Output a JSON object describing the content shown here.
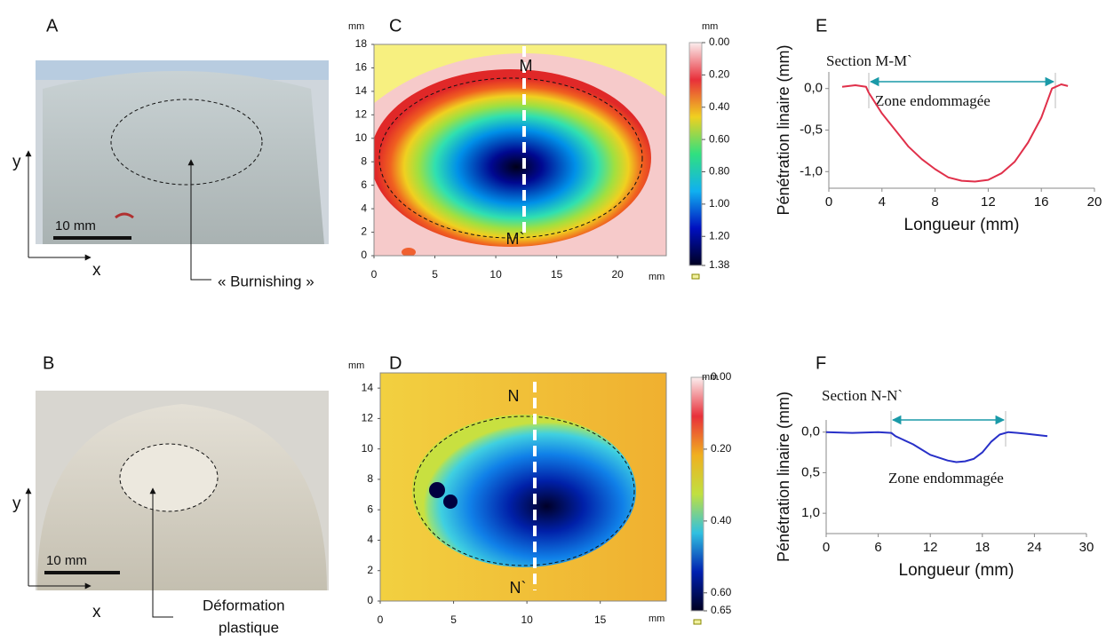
{
  "panels": {
    "A": {
      "label": "A",
      "scale": "10 mm",
      "axis_x": "x",
      "axis_y": "y",
      "annotation": "« Burnishing »"
    },
    "B": {
      "label": "B",
      "scale": "10 mm",
      "axis_x": "x",
      "axis_y": "y",
      "annotation": [
        "Déformation",
        "plastique"
      ]
    }
  },
  "chart_data": [
    {
      "type": "heatmap",
      "label": "C",
      "unit_x": "mm",
      "unit_y": "mm",
      "xlim": [
        0,
        24
      ],
      "xticks": [
        0,
        5,
        10,
        15,
        20
      ],
      "ylim": [
        0,
        18
      ],
      "yticks": [
        0,
        2,
        4,
        6,
        8,
        10,
        12,
        14,
        16,
        18
      ],
      "section_start": "M",
      "section_end": "M`",
      "colorbar": {
        "unit": "mm",
        "lim": [
          0,
          1.38
        ],
        "colors": [
          "#fbeeee",
          "#e8303a",
          "#f0d020",
          "#30e080",
          "#10b0f0",
          "#0010c0",
          "#000020"
        ],
        "ticks": [
          {
            "value": 0,
            "label": "0.00"
          },
          {
            "value": 0.2,
            "label": "0.20"
          },
          {
            "value": 0.4,
            "label": "0.40"
          },
          {
            "value": 0.6,
            "label": "0.60"
          },
          {
            "value": 0.8,
            "label": "0.80"
          },
          {
            "value": 1.0,
            "label": "1.00"
          },
          {
            "value": 1.2,
            "label": "1.20"
          },
          {
            "value": 1.38,
            "label": "1.38"
          }
        ]
      }
    },
    {
      "type": "heatmap",
      "label": "D",
      "unit_x": "mm",
      "unit_y": "mm",
      "xlim": [
        0,
        19.5
      ],
      "xticks": [
        0,
        5,
        10,
        15
      ],
      "ylim": [
        0,
        15
      ],
      "yticks": [
        0,
        2,
        4,
        6,
        8,
        10,
        12,
        14
      ],
      "section_start": "N",
      "section_end": "N`",
      "colorbar": {
        "unit": "mm",
        "lim": [
          0,
          0.65
        ],
        "colors": [
          "#fbeeee",
          "#e8303a",
          "#f0b020",
          "#c0e040",
          "#30c0e0",
          "#0020b0",
          "#000020"
        ],
        "ticks": [
          {
            "value": 0,
            "label": "0.00"
          },
          {
            "value": 0.2,
            "label": "0.20"
          },
          {
            "value": 0.4,
            "label": "0.40"
          },
          {
            "value": 0.6,
            "label": "0.60"
          },
          {
            "value": 0.65,
            "label": "0.65"
          }
        ]
      }
    },
    {
      "type": "line",
      "label": "E",
      "title": "Section M-M`",
      "annotation": "Zone endommagée",
      "xlabel": "Longueur (mm)",
      "ylabel": "Pénétration linaire (mm)",
      "xlim": [
        0,
        20
      ],
      "xticks": [
        0,
        4,
        8,
        12,
        16,
        20
      ],
      "ylim": [
        -1.2,
        0.2
      ],
      "yticks": [
        {
          "value": 0,
          "label": "0,0"
        },
        {
          "value": -0.5,
          "label": "-0,5"
        },
        {
          "value": -1,
          "label": "-1,0"
        }
      ],
      "x": [
        1,
        2,
        2.8,
        3,
        4,
        5,
        6,
        7,
        8,
        9,
        10,
        11,
        12,
        13,
        14,
        15,
        16,
        16.8,
        17.5,
        18
      ],
      "series": [
        {
          "color": "#e0304a",
          "values": [
            0.02,
            0.04,
            0.02,
            -0.05,
            -0.3,
            -0.5,
            -0.7,
            -0.85,
            -0.97,
            -1.07,
            -1.11,
            -1.12,
            -1.1,
            -1.02,
            -0.88,
            -0.65,
            -0.35,
            0,
            0.05,
            0.03
          ]
        }
      ]
    },
    {
      "type": "line",
      "label": "F",
      "title": "Section N-N`",
      "annotation": "Zone endommagée",
      "xlabel": "Longueur (mm)",
      "ylabel": "Pénétration linaire (mm)",
      "xlim": [
        0,
        30
      ],
      "xticks": [
        0,
        6,
        12,
        18,
        24,
        30
      ],
      "ylim": [
        1.25,
        -0.15
      ],
      "yticks": [
        {
          "value": 0,
          "label": "0,0"
        },
        {
          "value": 0.5,
          "label": "0,5"
        },
        {
          "value": 1,
          "label": "1,0"
        }
      ],
      "x": [
        0,
        3,
        6,
        7.5,
        8,
        10,
        12,
        14,
        15,
        16,
        17,
        18,
        19,
        20,
        21,
        23,
        25.5
      ],
      "series": [
        {
          "color": "#2830c8",
          "values": [
            0,
            0.01,
            0,
            0.01,
            0.05,
            0.15,
            0.28,
            0.35,
            0.37,
            0.36,
            0.33,
            0.25,
            0.12,
            0.03,
            0,
            0.02,
            0.05
          ]
        }
      ]
    }
  ]
}
